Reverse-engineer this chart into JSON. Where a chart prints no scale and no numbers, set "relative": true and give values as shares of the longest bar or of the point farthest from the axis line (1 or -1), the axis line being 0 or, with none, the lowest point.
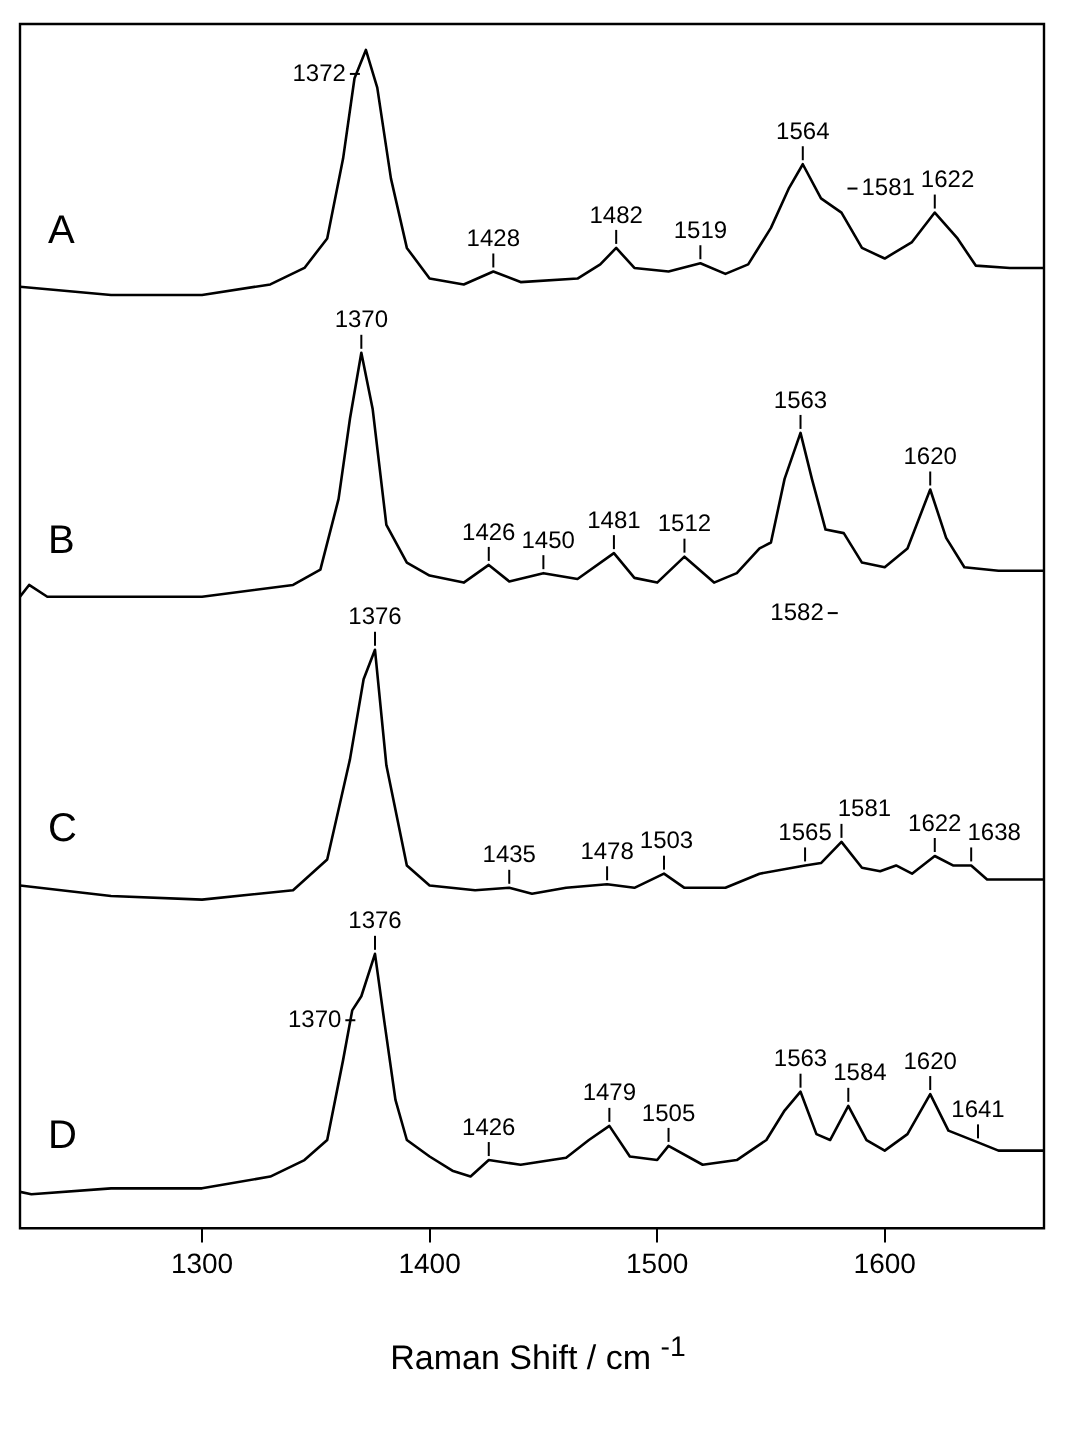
{
  "chart_data": {
    "type": "line",
    "relative": true,
    "xlabel": "Raman Shift / cm $^{-1}$",
    "xlim": [
      1220,
      1670
    ],
    "xticks": [
      1300,
      1400,
      1500,
      1600
    ],
    "grid": false,
    "legend": false,
    "marker": "none",
    "line_style": "solid",
    "series": [
      {
        "name": "A",
        "color": "#000000",
        "x": [
          1220,
          1260,
          1300,
          1330,
          1345,
          1355,
          1362,
          1367,
          1372,
          1377,
          1383,
          1390,
          1400,
          1415,
          1428,
          1440,
          1465,
          1475,
          1482,
          1490,
          1505,
          1519,
          1530,
          1540,
          1550,
          1558,
          1564,
          1572,
          1581,
          1590,
          1600,
          1612,
          1622,
          1632,
          1640,
          1655,
          1670
        ],
        "values": [
          0.799,
          0.792,
          0.792,
          0.801,
          0.815,
          0.84,
          0.908,
          0.976,
          1.0,
          0.968,
          0.891,
          0.832,
          0.806,
          0.801,
          0.812,
          0.803,
          0.806,
          0.818,
          0.832,
          0.815,
          0.812,
          0.819,
          0.81,
          0.818,
          0.849,
          0.883,
          0.903,
          0.874,
          0.862,
          0.832,
          0.823,
          0.837,
          0.862,
          0.84,
          0.817,
          0.815,
          0.815
        ]
      },
      {
        "name": "B",
        "color": "#000000",
        "x": [
          1220,
          1224,
          1232,
          1300,
          1340,
          1352,
          1360,
          1365,
          1370,
          1375,
          1381,
          1390,
          1400,
          1415,
          1426,
          1435,
          1450,
          1465,
          1481,
          1490,
          1500,
          1512,
          1525,
          1535,
          1545,
          1550,
          1556,
          1563,
          1568,
          1574,
          1582,
          1590,
          1600,
          1610,
          1620,
          1627,
          1635,
          1650,
          1670
        ],
        "values": [
          0.536,
          0.546,
          0.536,
          0.536,
          0.546,
          0.559,
          0.619,
          0.687,
          0.743,
          0.695,
          0.597,
          0.565,
          0.554,
          0.548,
          0.563,
          0.549,
          0.556,
          0.551,
          0.573,
          0.552,
          0.548,
          0.57,
          0.548,
          0.556,
          0.577,
          0.582,
          0.636,
          0.675,
          0.636,
          0.593,
          0.59,
          0.565,
          0.561,
          0.577,
          0.627,
          0.586,
          0.561,
          0.558,
          0.558
        ]
      },
      {
        "name": "C",
        "color": "#000000",
        "x": [
          1220,
          1260,
          1300,
          1340,
          1355,
          1365,
          1371,
          1376,
          1381,
          1390,
          1400,
          1420,
          1435,
          1445,
          1460,
          1478,
          1490,
          1503,
          1512,
          1530,
          1545,
          1565,
          1572,
          1581,
          1590,
          1598,
          1605,
          1612,
          1622,
          1630,
          1638,
          1645,
          1670
        ],
        "values": [
          0.291,
          0.282,
          0.279,
          0.287,
          0.313,
          0.398,
          0.466,
          0.491,
          0.393,
          0.308,
          0.291,
          0.287,
          0.289,
          0.284,
          0.289,
          0.292,
          0.289,
          0.301,
          0.289,
          0.289,
          0.301,
          0.308,
          0.31,
          0.328,
          0.306,
          0.303,
          0.308,
          0.301,
          0.316,
          0.308,
          0.308,
          0.296,
          0.296
        ]
      },
      {
        "name": "D",
        "color": "#000000",
        "x": [
          1220,
          1225,
          1260,
          1300,
          1330,
          1345,
          1355,
          1362,
          1366,
          1370,
          1376,
          1380,
          1385,
          1390,
          1400,
          1410,
          1418,
          1426,
          1440,
          1460,
          1470,
          1479,
          1488,
          1500,
          1505,
          1520,
          1535,
          1548,
          1556,
          1563,
          1570,
          1576,
          1584,
          1592,
          1600,
          1610,
          1620,
          1628,
          1641,
          1650,
          1670
        ],
        "values": [
          0.031,
          0.029,
          0.034,
          0.034,
          0.044,
          0.058,
          0.075,
          0.143,
          0.185,
          0.197,
          0.233,
          0.177,
          0.109,
          0.075,
          0.061,
          0.049,
          0.044,
          0.058,
          0.054,
          0.06,
          0.075,
          0.087,
          0.061,
          0.058,
          0.07,
          0.054,
          0.058,
          0.075,
          0.1,
          0.116,
          0.08,
          0.075,
          0.104,
          0.075,
          0.066,
          0.08,
          0.114,
          0.083,
          0.073,
          0.066,
          0.066
        ]
      }
    ],
    "annotations": [
      {
        "text": "1372",
        "x": 1372,
        "y": 1.0
      },
      {
        "text": "1428",
        "x": 1428,
        "y": 0.812
      },
      {
        "text": "1482",
        "x": 1482,
        "y": 0.832
      },
      {
        "text": "1519",
        "x": 1519,
        "y": 0.819
      },
      {
        "text": "1564",
        "x": 1564,
        "y": 0.903
      },
      {
        "text": "1581",
        "x": 1581,
        "y": 0.862
      },
      {
        "text": "1622",
        "x": 1622,
        "y": 0.862
      },
      {
        "text": "1370",
        "x": 1370,
        "y": 0.743
      },
      {
        "text": "1426",
        "x": 1426,
        "y": 0.563
      },
      {
        "text": "1450",
        "x": 1450,
        "y": 0.556
      },
      {
        "text": "1481",
        "x": 1481,
        "y": 0.573
      },
      {
        "text": "1512",
        "x": 1512,
        "y": 0.57
      },
      {
        "text": "1563",
        "x": 1563,
        "y": 0.675
      },
      {
        "text": "1582",
        "x": 1582,
        "y": 0.59
      },
      {
        "text": "1620",
        "x": 1620,
        "y": 0.627
      },
      {
        "text": "1376",
        "x": 1376,
        "y": 0.491
      },
      {
        "text": "1435",
        "x": 1435,
        "y": 0.289
      },
      {
        "text": "1478",
        "x": 1478,
        "y": 0.292
      },
      {
        "text": "1503",
        "x": 1503,
        "y": 0.301
      },
      {
        "text": "1565",
        "x": 1565,
        "y": 0.308
      },
      {
        "text": "1581",
        "x": 1581,
        "y": 0.328
      },
      {
        "text": "1622",
        "x": 1622,
        "y": 0.316
      },
      {
        "text": "1638",
        "x": 1638,
        "y": 0.308
      },
      {
        "text": "1370",
        "x": 1370,
        "y": 0.197
      },
      {
        "text": "1376",
        "x": 1376,
        "y": 0.233
      },
      {
        "text": "1426",
        "x": 1426,
        "y": 0.058
      },
      {
        "text": "1479",
        "x": 1479,
        "y": 0.087
      },
      {
        "text": "1505",
        "x": 1505,
        "y": 0.07
      },
      {
        "text": "1563",
        "x": 1563,
        "y": 0.116
      },
      {
        "text": "1584",
        "x": 1584,
        "y": 0.104
      },
      {
        "text": "1620",
        "x": 1620,
        "y": 0.114
      },
      {
        "text": "1641",
        "x": 1641,
        "y": 0.073
      }
    ]
  }
}
